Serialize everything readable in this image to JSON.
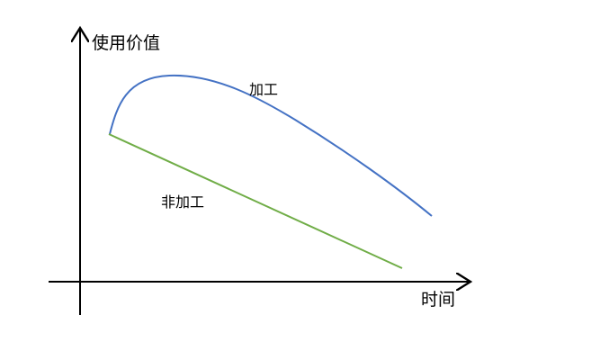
{
  "axes": {
    "y_label": "使用价值",
    "x_label": "时间"
  },
  "curves": {
    "processed": {
      "label": "加工",
      "color": "#4472C4"
    },
    "unprocessed": {
      "label": "非加工",
      "color": "#70AD47"
    }
  }
}
